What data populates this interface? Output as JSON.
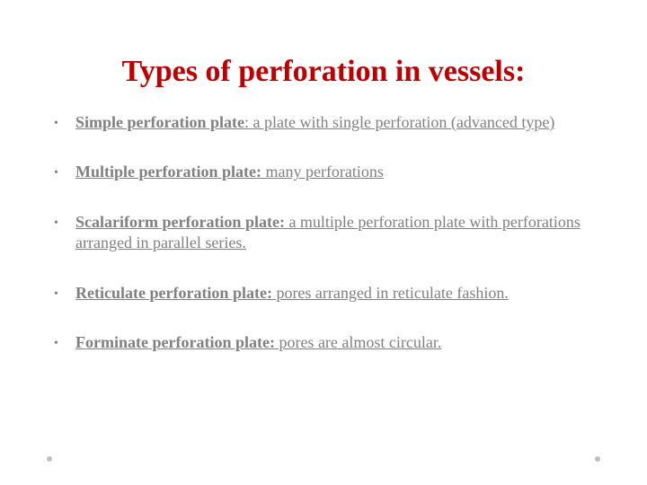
{
  "title": "Types of perforation in vessels:",
  "title_color": "#c00000",
  "text_color": "#808080",
  "bullets": [
    {
      "term": "Simple perforation plate",
      "colon": ":",
      "desc": " a plate with single perforation (advanced type)"
    },
    {
      "term": "Multiple perforation plate:",
      "colon": "",
      "desc": " many perforations"
    },
    {
      "term": "Scalariform perforation plate:",
      "colon": "",
      "desc": " a multiple perforation plate with perforations arranged in parallel series."
    },
    {
      "term": "Reticulate perforation plate:",
      "colon": "",
      "desc": " pores arranged in reticulate fashion."
    },
    {
      "term": "Forminate perforation plate:",
      "colon": "",
      "desc": " pores are almost circular."
    }
  ],
  "bullet_glyph": "•"
}
